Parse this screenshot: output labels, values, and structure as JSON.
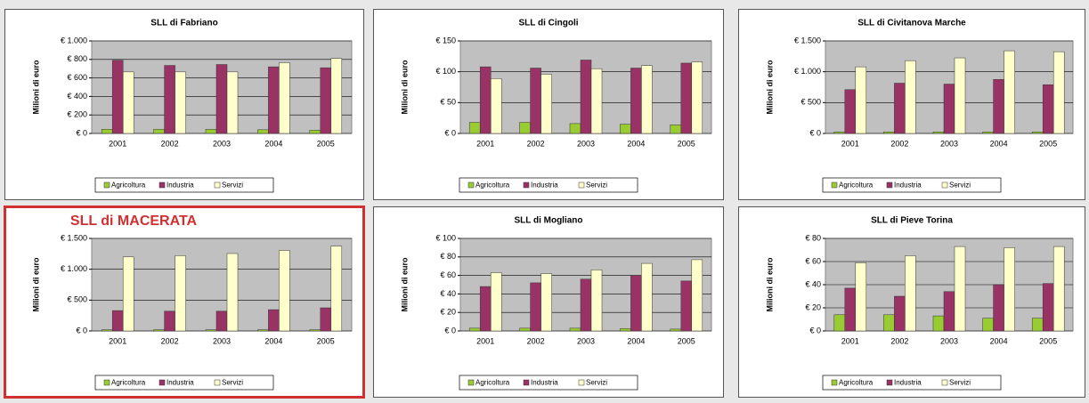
{
  "chart_data": [
    {
      "type": "bar",
      "title": "SLL di Fabriano",
      "y_label": "Milioni di euro",
      "categories": [
        "2001",
        "2002",
        "2003",
        "2004",
        "2005"
      ],
      "series": [
        {
          "name": "Agricoltura",
          "color": "#99cc33",
          "values": [
            45,
            45,
            45,
            40,
            35
          ]
        },
        {
          "name": "Industria",
          "color": "#993366",
          "values": [
            790,
            735,
            745,
            720,
            710
          ]
        },
        {
          "name": "Servizi",
          "color": "#ffffcc",
          "values": [
            665,
            665,
            665,
            765,
            810
          ]
        }
      ],
      "ylim": [
        0,
        1000
      ],
      "yticks": [
        {
          "value": 0,
          "label": "€ 0"
        },
        {
          "value": 200,
          "label": "€ 200"
        },
        {
          "value": 400,
          "label": "€ 400"
        },
        {
          "value": 600,
          "label": "€ 600"
        },
        {
          "value": 800,
          "label": "€ 800"
        },
        {
          "value": 1000,
          "label": "€ 1.000"
        }
      ],
      "grid": true
    },
    {
      "type": "bar",
      "title": "SLL di Cingoli",
      "y_label": "Milioni di euro",
      "categories": [
        "2001",
        "2002",
        "2003",
        "2004",
        "2005"
      ],
      "series": [
        {
          "name": "Agricoltura",
          "color": "#99cc33",
          "values": [
            18,
            18,
            16,
            15,
            14
          ]
        },
        {
          "name": "Industria",
          "color": "#993366",
          "values": [
            108,
            106,
            119,
            106,
            114
          ]
        },
        {
          "name": "Servizi",
          "color": "#ffffcc",
          "values": [
            89,
            96,
            105,
            110,
            116
          ]
        }
      ],
      "ylim": [
        0,
        150
      ],
      "yticks": [
        {
          "value": 0,
          "label": "€ 0"
        },
        {
          "value": 50,
          "label": "€ 50"
        },
        {
          "value": 100,
          "label": "€ 100"
        },
        {
          "value": 150,
          "label": "€ 150"
        }
      ],
      "grid": true
    },
    {
      "type": "bar",
      "title": "SLL di Civitanova Marche",
      "y_label": "Milioni di euro",
      "categories": [
        "2001",
        "2002",
        "2003",
        "2004",
        "2005"
      ],
      "series": [
        {
          "name": "Agricoltura",
          "color": "#99cc33",
          "values": [
            25,
            25,
            25,
            25,
            25
          ]
        },
        {
          "name": "Industria",
          "color": "#993366",
          "values": [
            710,
            815,
            800,
            875,
            790
          ]
        },
        {
          "name": "Servizi",
          "color": "#ffffcc",
          "values": [
            1080,
            1180,
            1225,
            1340,
            1325
          ]
        }
      ],
      "ylim": [
        0,
        1500
      ],
      "yticks": [
        {
          "value": 0,
          "label": "€ 0"
        },
        {
          "value": 500,
          "label": "€ 500"
        },
        {
          "value": 1000,
          "label": "€ 1.000"
        },
        {
          "value": 1500,
          "label": "€ 1.500"
        }
      ],
      "grid": true
    },
    {
      "type": "bar",
      "title": "SLL di MACERATA",
      "title_color": "#d03030",
      "border_color": "#d03030",
      "y_label": "Milioni di euro",
      "categories": [
        "2001",
        "2002",
        "2003",
        "2004",
        "2005"
      ],
      "series": [
        {
          "name": "Agricoltura",
          "color": "#99cc33",
          "values": [
            20,
            20,
            20,
            20,
            20
          ]
        },
        {
          "name": "Industria",
          "color": "#993366",
          "values": [
            330,
            320,
            320,
            345,
            375
          ]
        },
        {
          "name": "Servizi",
          "color": "#ffffcc",
          "values": [
            1200,
            1220,
            1255,
            1305,
            1375
          ]
        }
      ],
      "ylim": [
        0,
        1500
      ],
      "yticks": [
        {
          "value": 0,
          "label": "€ 0"
        },
        {
          "value": 500,
          "label": "€ 500"
        },
        {
          "value": 1000,
          "label": "€ 1.000"
        },
        {
          "value": 1500,
          "label": "€ 1.500"
        }
      ],
      "grid": true
    },
    {
      "type": "bar",
      "title": "SLL di Mogliano",
      "y_label": "Milioni di euro",
      "categories": [
        "2001",
        "2002",
        "2003",
        "2004",
        "2005"
      ],
      "series": [
        {
          "name": "Agricoltura",
          "color": "#99cc33",
          "values": [
            3,
            3,
            3,
            2.5,
            2
          ]
        },
        {
          "name": "Industria",
          "color": "#993366",
          "values": [
            48,
            52,
            56,
            60,
            54
          ]
        },
        {
          "name": "Servizi",
          "color": "#ffffcc",
          "values": [
            63,
            62,
            66,
            73,
            77
          ]
        }
      ],
      "ylim": [
        0,
        100
      ],
      "yticks": [
        {
          "value": 0,
          "label": "€ 0"
        },
        {
          "value": 20,
          "label": "€ 20"
        },
        {
          "value": 40,
          "label": "€ 40"
        },
        {
          "value": 60,
          "label": "€ 60"
        },
        {
          "value": 80,
          "label": "€ 80"
        },
        {
          "value": 100,
          "label": "€ 100"
        }
      ],
      "grid": true
    },
    {
      "type": "bar",
      "title": "SLL di Pieve Torina",
      "y_label": "Milioni di euro",
      "categories": [
        "2001",
        "2002",
        "2003",
        "2004",
        "2005"
      ],
      "series": [
        {
          "name": "Agricoltura",
          "color": "#99cc33",
          "values": [
            14,
            14,
            13,
            11,
            11
          ]
        },
        {
          "name": "Industria",
          "color": "#993366",
          "values": [
            37,
            30,
            34,
            40,
            41
          ]
        },
        {
          "name": "Servizi",
          "color": "#ffffcc",
          "values": [
            59,
            65,
            73,
            72,
            73
          ]
        }
      ],
      "ylim": [
        0,
        80
      ],
      "yticks": [
        {
          "value": 0,
          "label": "€ 0"
        },
        {
          "value": 20,
          "label": "€ 20"
        },
        {
          "value": 40,
          "label": "€ 40"
        },
        {
          "value": 60,
          "label": "€ 60"
        },
        {
          "value": 80,
          "label": "€ 80"
        }
      ],
      "grid": true
    }
  ]
}
